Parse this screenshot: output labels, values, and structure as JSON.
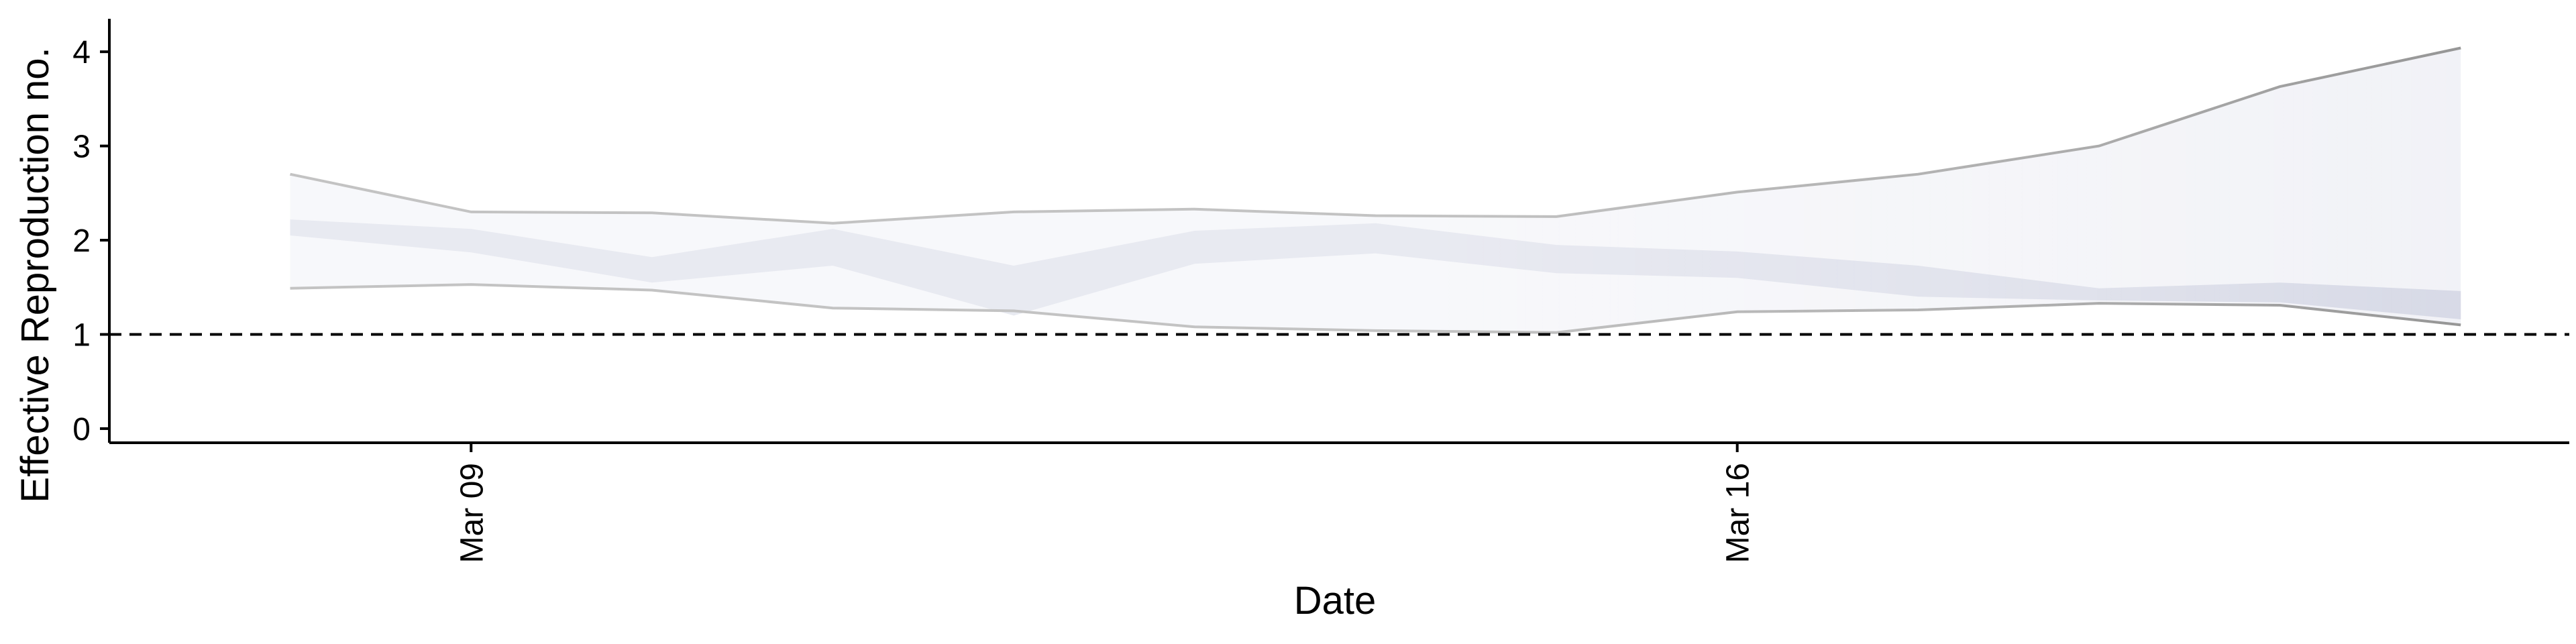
{
  "chart_data": {
    "type": "area",
    "xlabel": "Date",
    "ylabel": "Effective Reproduction no.",
    "x_ticks": [
      "Mar 09",
      "Mar 16"
    ],
    "y_ticks": [
      "0",
      "1",
      "2",
      "3",
      "4"
    ],
    "ylim": [
      -0.15,
      4.35
    ],
    "xlim_days": [
      7.0,
      20.6
    ],
    "reference_line": 1,
    "dates": [
      "Mar 08",
      "Mar 09",
      "Mar 10",
      "Mar 11",
      "Mar 12",
      "Mar 13",
      "Mar 14",
      "Mar 15",
      "Mar 16",
      "Mar 17",
      "Mar 18",
      "Mar 19",
      "Mar 20"
    ],
    "series": [
      {
        "ci90_upper": [
          2.7,
          2.3,
          2.29,
          2.18,
          2.3,
          2.33,
          2.26,
          2.25,
          2.51,
          2.7,
          3.0,
          3.63,
          4.04
        ],
        "ci90_lower": [
          1.49,
          1.53,
          1.47,
          1.28,
          1.25,
          1.08,
          1.04,
          1.02,
          1.24,
          1.26,
          1.33,
          1.31,
          1.1
        ],
        "ci50_upper": [
          2.22,
          2.12,
          1.82,
          2.12,
          1.73,
          2.1,
          2.18,
          1.95,
          1.88,
          1.73,
          1.49,
          1.55,
          1.46
        ],
        "ci50_lower": [
          2.05,
          1.87,
          1.55,
          1.73,
          1.2,
          1.75,
          1.86,
          1.65,
          1.6,
          1.4,
          1.36,
          1.34,
          1.16
        ]
      }
    ],
    "colors": {
      "ci90_fill": "#eeeff5",
      "ci50_fill": "#cdd0e0",
      "ci_line": "#7a7a7a",
      "reference": "#000000"
    },
    "grid": false
  }
}
